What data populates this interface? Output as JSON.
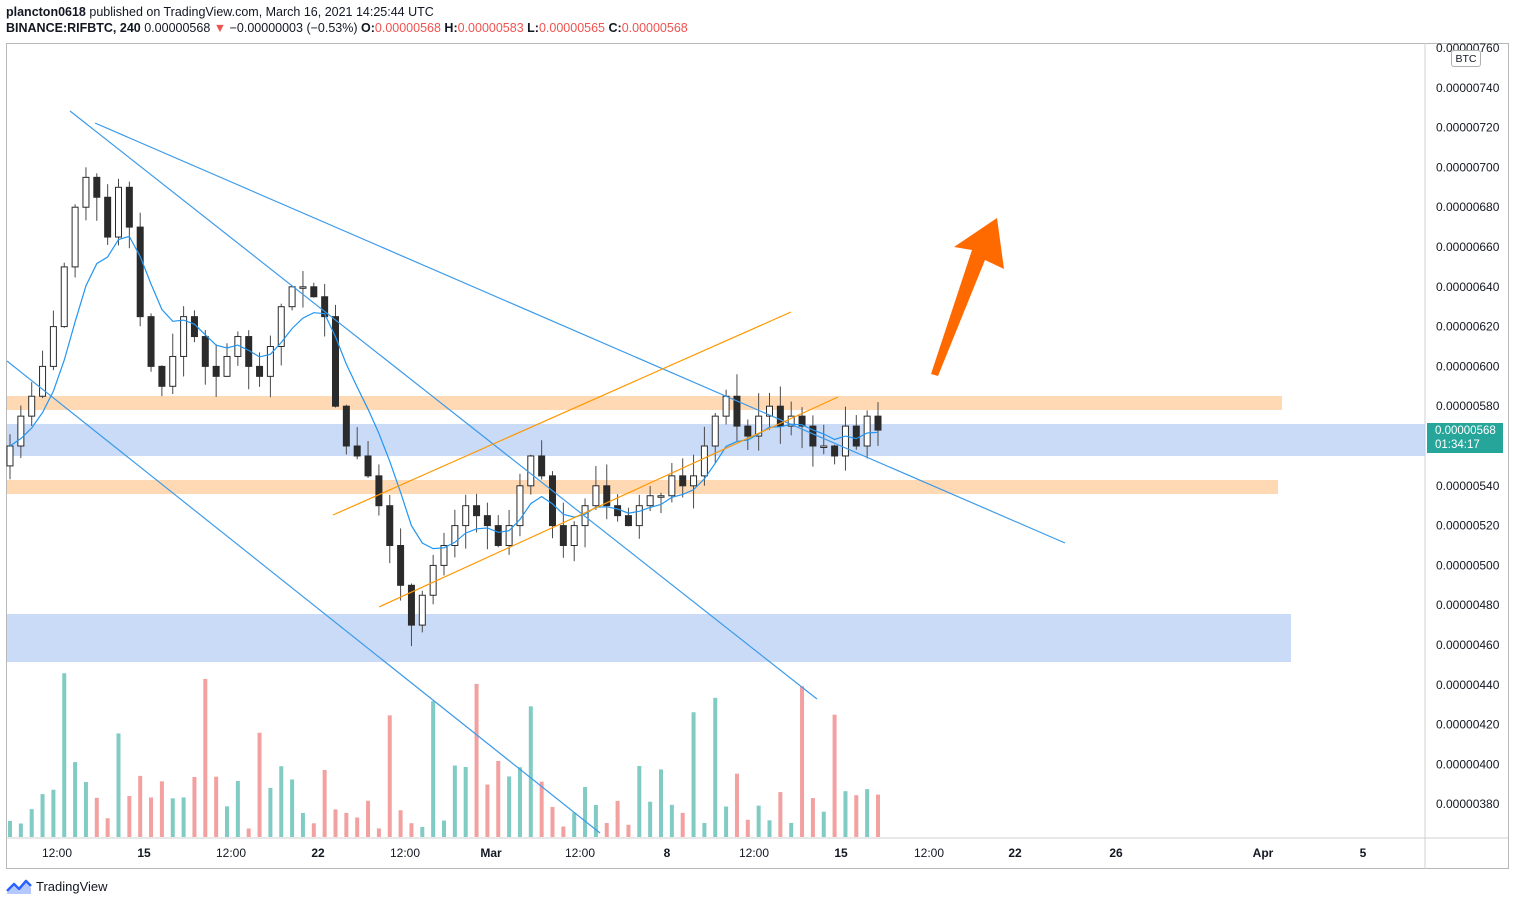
{
  "header": {
    "publisher_user": "plancton0618",
    "publisher_rest": "published on TradingView.com, March 16, 2021 14:25:44 UTC",
    "symbol": "BINANCE:RIFBTC, 240",
    "last": "0.00000568",
    "change_arrow": "▼",
    "change": "−0.00000003 (−0.53%)",
    "o_label": "O:",
    "open": "0.00000568",
    "h_label": "H:",
    "high": "0.00000583",
    "l_label": "L:",
    "low": "0.00000565",
    "c_label": "C:",
    "close": "0.00000568"
  },
  "footer": {
    "brand": "TradingView",
    "icon": "tradingview-logo-icon"
  },
  "price_axis": {
    "unit": "BTC",
    "current_price": "0.00000568",
    "countdown": "01:34:17"
  },
  "colors": {
    "up": "#26a69a",
    "down": "#ef5350",
    "ma_line": "#2196f3",
    "trendline": "#3d9be9",
    "channel": "#ff9800",
    "orange_zone": "#ffcc99",
    "blue_zone": "#b3ccf5",
    "arrow": "#ff6a00",
    "vol_up": "#80cbc4",
    "vol_down": "#f2a0a0",
    "price_tag": "#26a69a"
  },
  "chart_data": {
    "type": "candlestick",
    "title": "BINANCE:RIFBTC, 240",
    "xlabel": "",
    "ylabel": "",
    "ylim": [
      3.6e-06,
      7.7e-06
    ],
    "x_ticks": [
      "12:00",
      "15",
      "12:00",
      "22",
      "12:00",
      "Mar",
      "12:00",
      "8",
      "12:00",
      "15",
      "12:00",
      "22",
      "26",
      "Apr",
      "5"
    ],
    "y_ticks": [
      "0.00000760",
      "0.00000740",
      "0.00000720",
      "0.00000700",
      "0.00000680",
      "0.00000660",
      "0.00000640",
      "0.00000620",
      "0.00000600",
      "0.00000580",
      "0.00000540",
      "0.00000520",
      "0.00000500",
      "0.00000480",
      "0.00000460",
      "0.00000440",
      "0.00000420",
      "0.00000400",
      "0.00000380"
    ],
    "close_series": [
      5.6e-06,
      5.75e-06,
      5.85e-06,
      6e-06,
      6.2e-06,
      6.5e-06,
      6.8e-06,
      6.95e-06,
      6.85e-06,
      6.65e-06,
      6.9e-06,
      6.7e-06,
      6.25e-06,
      6e-06,
      5.9e-06,
      6.05e-06,
      6.25e-06,
      6.15e-06,
      6e-06,
      5.95e-06,
      6.05e-06,
      6.15e-06,
      6e-06,
      5.95e-06,
      6.1e-06,
      6.3e-06,
      6.4e-06,
      6.4e-06,
      6.35e-06,
      6.25e-06,
      5.8e-06,
      5.6e-06,
      5.55e-06,
      5.45e-06,
      5.3e-06,
      5.1e-06,
      4.9e-06,
      4.7e-06,
      4.85e-06,
      5e-06,
      5.1e-06,
      5.2e-06,
      5.3e-06,
      5.25e-06,
      5.2e-06,
      5.1e-06,
      5.2e-06,
      5.4e-06,
      5.55e-06,
      5.45e-06,
      5.2e-06,
      5.1e-06,
      5.2e-06,
      5.3e-06,
      5.4e-06,
      5.3e-06,
      5.25e-06,
      5.2e-06,
      5.3e-06,
      5.35e-06,
      5.35e-06,
      5.45e-06,
      5.4e-06,
      5.45e-06,
      5.6e-06,
      5.75e-06,
      5.85e-06,
      5.7e-06,
      5.65e-06,
      5.75e-06,
      5.8e-06,
      5.7e-06,
      5.75e-06,
      5.7e-06,
      5.6e-06,
      5.6e-06,
      5.55e-06,
      5.7e-06,
      5.6e-06,
      5.75e-06,
      5.68e-06
    ],
    "moving_average": {
      "color": "#2196f3"
    },
    "volume": {
      "shown": true,
      "position": "bottom"
    },
    "annotations": {
      "horizontal_zones": [
        {
          "color": "orange",
          "y_range": [
            5.79e-06,
            5.83e-06
          ]
        },
        {
          "color": "blue",
          "y_range": [
            5.6e-06,
            5.68e-06
          ]
        },
        {
          "color": "orange",
          "y_range": [
            5.37e-06,
            5.42e-06
          ]
        },
        {
          "color": "blue",
          "y_range": [
            4.51e-06,
            4.75e-06
          ]
        }
      ],
      "trendlines": "three descending blue lines",
      "channel": "ascending orange channel",
      "arrow": "orange arrow pointing up-right"
    },
    "grid": false,
    "legend": "none"
  }
}
